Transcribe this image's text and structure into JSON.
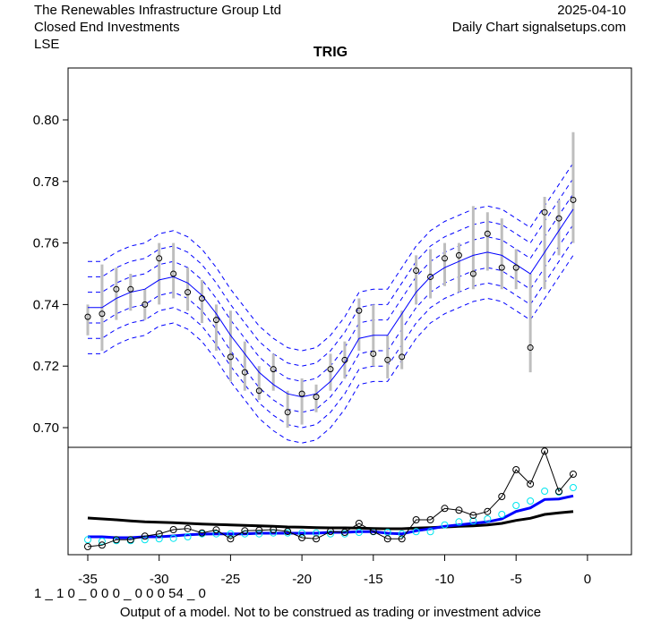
{
  "header": {
    "company": "The Renewables Infrastructure Group Ltd",
    "category": "Closed End Investments",
    "exchange": "LSE",
    "date": "2025-04-10",
    "source": "Daily Chart signalsetups.com"
  },
  "footer": {
    "code": "1 _ 1 0 _ 0 0 0 _ 0 0 0   54 _ 0",
    "disclaimer": "Output of a model. Not to be construed as trading or investment advice"
  },
  "chart_data": [
    {
      "type": "line",
      "title": "TRIG",
      "ylim": [
        0.693,
        0.817
      ],
      "xlim": [
        -36.4,
        0.8
      ],
      "yticks": [
        "0.70",
        "0.72",
        "0.74",
        "0.76",
        "0.78",
        "0.80"
      ],
      "xticks": [
        "-35",
        "-30",
        "-25",
        "-20",
        "-15",
        "-10",
        "-5",
        "0"
      ],
      "x": [
        -35,
        -34,
        -33,
        -32,
        -31,
        -30,
        -29,
        -28,
        -27,
        -26,
        -25,
        -24,
        -23,
        -22,
        -21,
        -20,
        -19,
        -18,
        -17,
        -16,
        -15,
        -14,
        -13,
        -12,
        -11,
        -10,
        -9,
        -8,
        -7,
        -6,
        -5,
        -4,
        -3,
        -2,
        -1
      ],
      "close": [
        0.736,
        0.737,
        0.745,
        0.745,
        0.74,
        0.755,
        0.75,
        0.744,
        0.742,
        0.735,
        0.723,
        0.718,
        0.712,
        0.719,
        0.705,
        0.711,
        0.71,
        0.719,
        0.722,
        0.738,
        0.724,
        0.722,
        0.723,
        0.751,
        0.749,
        0.755,
        0.756,
        0.75,
        0.763,
        0.752,
        0.752,
        0.726,
        0.77,
        0.768,
        0.774
      ],
      "high": [
        0.74,
        0.753,
        0.752,
        0.75,
        0.745,
        0.76,
        0.76,
        0.752,
        0.748,
        0.74,
        0.738,
        0.728,
        0.72,
        0.724,
        0.712,
        0.716,
        0.714,
        0.724,
        0.728,
        0.742,
        0.74,
        0.73,
        0.738,
        0.756,
        0.758,
        0.76,
        0.76,
        0.772,
        0.77,
        0.768,
        0.758,
        0.75,
        0.775,
        0.774,
        0.796
      ],
      "low": [
        0.73,
        0.725,
        0.735,
        0.738,
        0.735,
        0.74,
        0.742,
        0.738,
        0.734,
        0.725,
        0.715,
        0.712,
        0.709,
        0.712,
        0.7,
        0.701,
        0.705,
        0.712,
        0.716,
        0.725,
        0.72,
        0.716,
        0.719,
        0.74,
        0.742,
        0.746,
        0.744,
        0.745,
        0.751,
        0.745,
        0.745,
        0.718,
        0.745,
        0.756,
        0.76
      ],
      "fit": [
        0.739,
        0.739,
        0.742,
        0.744,
        0.745,
        0.748,
        0.749,
        0.747,
        0.743,
        0.737,
        0.73,
        0.724,
        0.718,
        0.714,
        0.711,
        0.71,
        0.711,
        0.715,
        0.721,
        0.729,
        0.73,
        0.73,
        0.737,
        0.744,
        0.749,
        0.752,
        0.754,
        0.756,
        0.757,
        0.756,
        0.753,
        0.75,
        0.757,
        0.764,
        0.771
      ],
      "band_offsets": [
        0.005,
        0.01,
        0.015
      ],
      "colors": {
        "fit": "#0000ff",
        "bars": "#bebebe",
        "points": "#000000"
      }
    },
    {
      "type": "line",
      "title": "",
      "ylim": [
        0,
        120
      ],
      "series": [
        {
          "name": "oscillator",
          "color": "#000000",
          "markers": true,
          "line": true,
          "values": [
            9,
            10.7,
            16.7,
            16.7,
            20.7,
            23.3,
            28,
            29.3,
            24.3,
            27.7,
            17.7,
            26.7,
            27.3,
            28,
            26,
            19,
            17.7,
            26,
            25,
            35,
            26,
            17.7,
            17.7,
            39,
            39,
            51.7,
            49.7,
            44,
            48.3,
            65,
            95,
            79,
            115.7,
            70.7,
            90
          ]
        },
        {
          "name": "cyan-markers",
          "color": "#00e5ee",
          "markers": true,
          "line": false,
          "values": [
            16.7,
            15,
            15.7,
            15.7,
            16.7,
            17.7,
            18.3,
            20,
            23.3,
            23.3,
            23.3,
            23.3,
            23.3,
            24.3,
            24.3,
            24.3,
            24.3,
            23.3,
            23.3,
            25,
            25.7,
            25,
            23.3,
            25.7,
            25.7,
            33.3,
            36.7,
            37.7,
            40,
            45,
            55,
            60,
            71,
            70,
            75
          ]
        },
        {
          "name": "blue-average",
          "color": "#0000ff",
          "markers": false,
          "line": true,
          "values": [
            20,
            20,
            19,
            19,
            20,
            20,
            21,
            22.3,
            23,
            23.3,
            23.3,
            23.3,
            24,
            24,
            24,
            24,
            24,
            25,
            25,
            25.7,
            25.7,
            24,
            23.3,
            26.7,
            29,
            31.7,
            33.3,
            35,
            36.7,
            40,
            48.3,
            52.3,
            61.7,
            62.3,
            65.7
          ]
        },
        {
          "name": "black-average",
          "color": "#000000",
          "markers": false,
          "line": true,
          "values": [
            41,
            40,
            39,
            37.7,
            36.7,
            36.3,
            35.7,
            35,
            34.3,
            33.7,
            33.3,
            32.7,
            32.3,
            31.7,
            31,
            30.7,
            30.3,
            30,
            30,
            29.7,
            29.3,
            29,
            29,
            29.7,
            30.3,
            31,
            31.7,
            32.3,
            33.3,
            35,
            38.3,
            40.7,
            45,
            46.7,
            48.3
          ]
        }
      ]
    }
  ]
}
